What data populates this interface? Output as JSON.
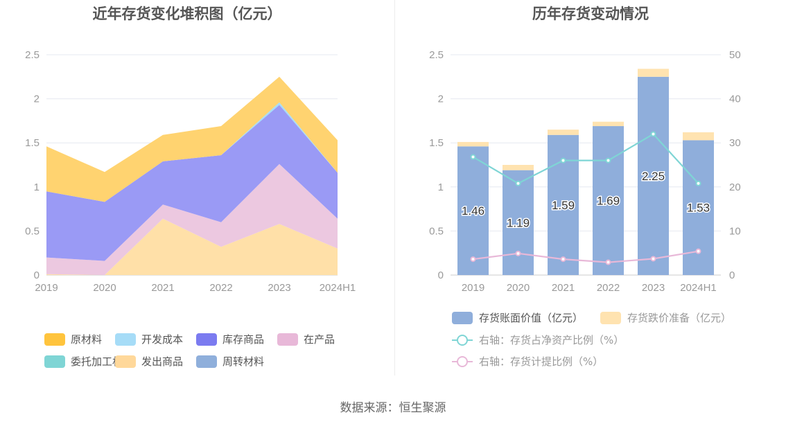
{
  "source": "数据来源：恒生聚源",
  "chart_data": [
    {
      "type": "area",
      "stacked": true,
      "title": "近年存货变化堆积图（亿元）",
      "categories": [
        "2019",
        "2020",
        "2021",
        "2022",
        "2023",
        "2024H1"
      ],
      "ylim": [
        0,
        2.5
      ],
      "yticks": [
        "0",
        "0.5",
        "1",
        "1.5",
        "2",
        "2.5"
      ],
      "grid": true,
      "legend_position": "bottom",
      "series": [
        {
          "name": "发出商品",
          "color": "#FFE0A8",
          "values": [
            0.01,
            0.0,
            0.64,
            0.32,
            0.58,
            0.3
          ]
        },
        {
          "name": "在产品",
          "color": "#ECC8E0",
          "values": [
            0.19,
            0.16,
            0.16,
            0.28,
            0.68,
            0.34
          ]
        },
        {
          "name": "库存商品",
          "color": "#9A9AF5",
          "values": [
            0.75,
            0.67,
            0.49,
            0.76,
            0.67,
            0.52
          ]
        },
        {
          "name": "开发成本",
          "color": "#A6DCF7",
          "values": [
            0.0,
            0.0,
            0.0,
            0.0,
            0.03,
            0.0
          ]
        },
        {
          "name": "原材料",
          "color": "#FFD370",
          "values": [
            0.51,
            0.34,
            0.3,
            0.33,
            0.29,
            0.37
          ]
        },
        {
          "name": "委托加工材料",
          "color": "#7FD5D5",
          "values": [
            0,
            0,
            0,
            0,
            0,
            0
          ]
        },
        {
          "name": "周转材料",
          "color": "#8FAFDB",
          "values": [
            0,
            0,
            0,
            0,
            0,
            0
          ]
        }
      ],
      "legend": [
        {
          "name": "原材料",
          "color": "#FFC43D"
        },
        {
          "name": "开发成本",
          "color": "#A6DCF7"
        },
        {
          "name": "库存商品",
          "color": "#7B7BF0"
        },
        {
          "name": "在产品",
          "color": "#E8B8D8"
        },
        {
          "name": "委托加工材料",
          "color": "#7FD5D5"
        },
        {
          "name": "发出商品",
          "color": "#FFD89A"
        },
        {
          "name": "周转材料",
          "color": "#8FAFDB"
        }
      ]
    },
    {
      "type": "bar",
      "stacked": true,
      "title": "历年存货变动情况",
      "categories": [
        "2019",
        "2020",
        "2021",
        "2022",
        "2023",
        "2024H1"
      ],
      "ylim": [
        0,
        2.5
      ],
      "y2lim": [
        0,
        50
      ],
      "yticks": [
        "0",
        "0.5",
        "1",
        "1.5",
        "2",
        "2.5"
      ],
      "y2ticks": [
        "0",
        "10",
        "20",
        "30",
        "40",
        "50"
      ],
      "grid": true,
      "legend_position": "bottom",
      "series": [
        {
          "name": "存货账面价值（亿元）",
          "color": "#8FAEDB",
          "axis": "left",
          "kind": "bar",
          "values": [
            1.46,
            1.19,
            1.59,
            1.69,
            2.25,
            1.53
          ],
          "labels": [
            "1.46",
            "1.19",
            "1.59",
            "1.69",
            "2.25",
            "1.53"
          ]
        },
        {
          "name": "存货跌价准备（亿元）",
          "color": "#FFE3B0",
          "axis": "left",
          "kind": "bar",
          "values": [
            0.05,
            0.06,
            0.06,
            0.05,
            0.09,
            0.09
          ]
        },
        {
          "name": "右轴：存货占净资产比例（%）",
          "color": "#7FD5D5",
          "axis": "right",
          "kind": "line",
          "values": [
            26.8,
            20.8,
            26.0,
            26.0,
            32.0,
            20.8
          ]
        },
        {
          "name": "右轴：存货计提比例（%）",
          "color": "#E8B8D8",
          "axis": "right",
          "kind": "line",
          "values": [
            3.6,
            4.9,
            3.6,
            2.9,
            3.7,
            5.4
          ]
        }
      ]
    }
  ]
}
